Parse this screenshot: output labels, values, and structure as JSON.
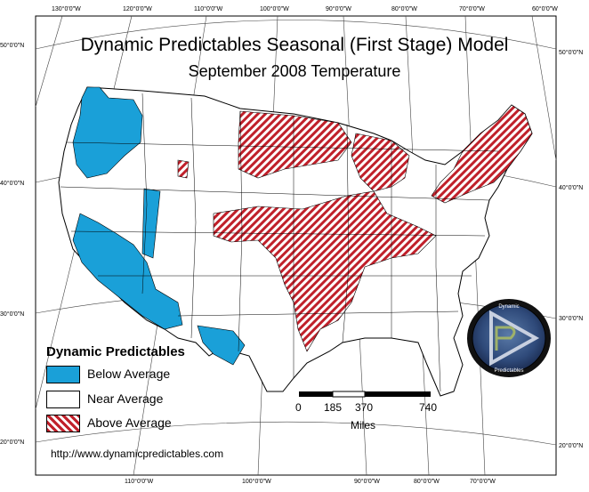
{
  "title": "Dynamic Predictables Seasonal (First Stage) Model",
  "subtitle": "September 2008 Temperature",
  "legend": {
    "title": "Dynamic Predictables",
    "items": [
      {
        "label": "Below Average",
        "color": "#1aa0d8",
        "pattern": "solid"
      },
      {
        "label": "Near Average",
        "color": "#ffffff",
        "pattern": "solid"
      },
      {
        "label": "Above Average",
        "color": "#c0202a",
        "pattern": "diagonal-hatch"
      }
    ]
  },
  "scale": {
    "ticks": [
      "0",
      "185",
      "370",
      "740"
    ],
    "unit": "Miles"
  },
  "url": "http://www.dynamicpredictables.com",
  "graticule": {
    "top": [
      "130°0'0\"W",
      "120°0'0\"W",
      "110°0'0\"W",
      "100°0'0\"W",
      "90°0'0\"W",
      "80°0'0\"W",
      "70°0'0\"W",
      "60°0'0\"W"
    ],
    "bottom": [
      "110°0'0\"W",
      "100°0'0\"W",
      "90°0'0\"W",
      "80°0'0\"W",
      "70°0'0\"W"
    ],
    "left": [
      "50°0'0\"N",
      "40°0'0\"N",
      "30°0'0\"N",
      "20°0'0\"N"
    ],
    "right": [
      "50°0'0\"N",
      "40°0'0\"N",
      "30°0'0\"N",
      "20°0'0\"N"
    ]
  },
  "logo": {
    "top_text": "Dynamic",
    "bottom_text": "Predictables"
  }
}
